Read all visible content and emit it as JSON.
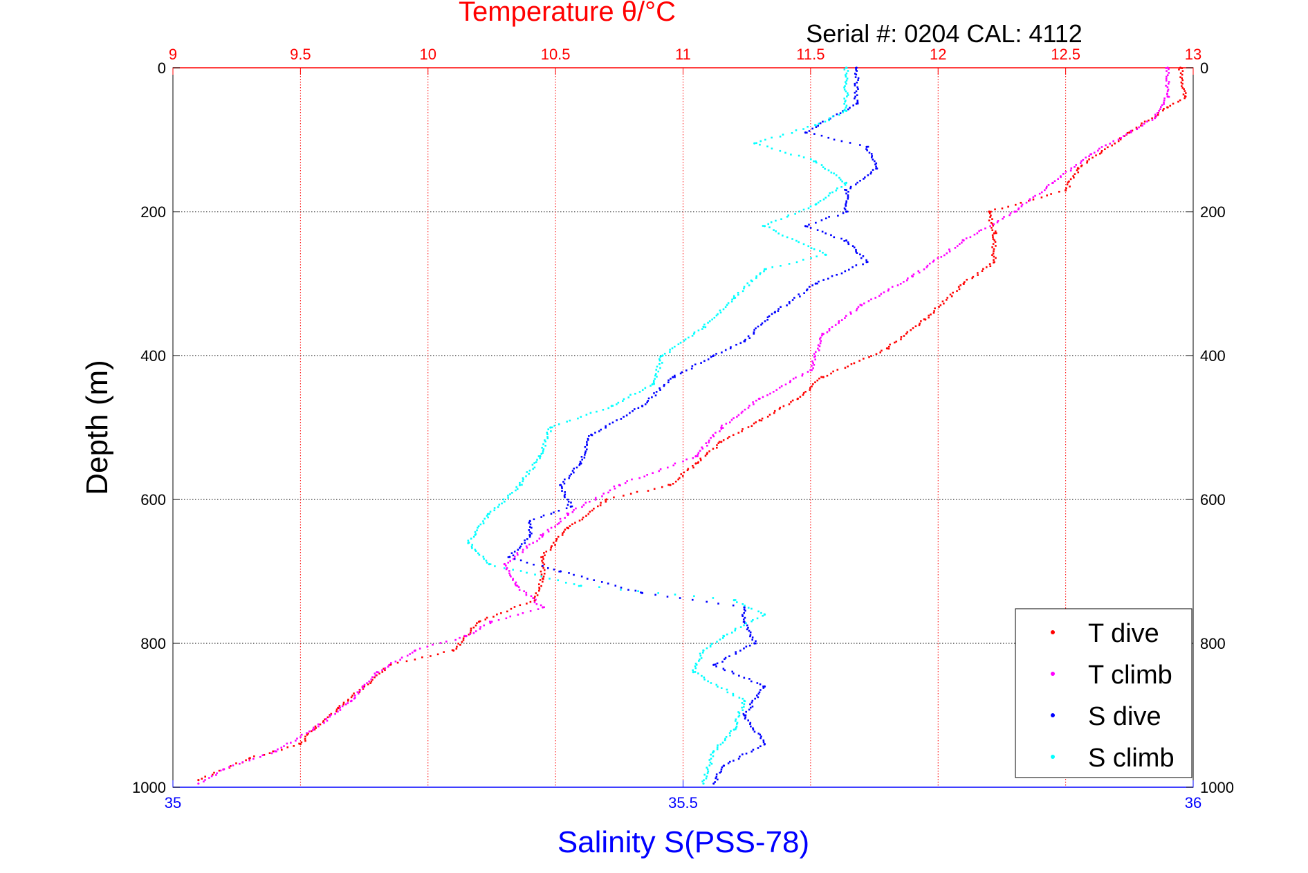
{
  "chart_data": {
    "type": "scatter",
    "title": "Temperature θ/°C",
    "subtitle": "Serial #: 0204  CAL: 4112",
    "ylabel": "Depth (m)",
    "xlabel": "Salinity S(PSS-78)",
    "y_axis": {
      "lim": [
        0,
        1000
      ],
      "reversed": true,
      "ticks": [
        0,
        200,
        400,
        600,
        800,
        1000
      ],
      "tick_labels": [
        "0",
        "200",
        "400",
        "600",
        "800",
        "1000"
      ]
    },
    "x_top": {
      "lim": [
        9,
        13
      ],
      "ticks": [
        9,
        9.5,
        10,
        10.5,
        11,
        11.5,
        12,
        12.5,
        13
      ],
      "tick_labels": [
        "9",
        "9.5",
        "10",
        "10.5",
        "11",
        "11.5",
        "12",
        "12.5",
        "13"
      ]
    },
    "x_bottom": {
      "lim": [
        35,
        36
      ],
      "ticks": [
        35,
        35.5,
        36
      ],
      "tick_labels": [
        "35",
        "35.5",
        "36"
      ]
    },
    "grid": true,
    "legend_position": "bottom-right",
    "colors": {
      "temperature_axis": "#ff0000",
      "salinity_axis": "#0000ff",
      "grid": "#000000"
    },
    "series": [
      {
        "name": "T dive",
        "axis": "x_top",
        "color": "#ff0000",
        "points": [
          [
            12.95,
            0
          ],
          [
            12.97,
            40
          ],
          [
            12.9,
            55
          ],
          [
            12.75,
            90
          ],
          [
            12.55,
            140
          ],
          [
            12.5,
            170
          ],
          [
            12.2,
            200
          ],
          [
            12.22,
            230
          ],
          [
            12.22,
            270
          ],
          [
            12.1,
            300
          ],
          [
            11.95,
            350
          ],
          [
            11.8,
            390
          ],
          [
            11.55,
            430
          ],
          [
            11.45,
            460
          ],
          [
            11.3,
            490
          ],
          [
            11.15,
            520
          ],
          [
            11.05,
            550
          ],
          [
            10.95,
            580
          ],
          [
            10.7,
            600
          ],
          [
            10.55,
            640
          ],
          [
            10.45,
            680
          ],
          [
            10.45,
            710
          ],
          [
            10.42,
            740
          ],
          [
            10.2,
            770
          ],
          [
            10.1,
            810
          ],
          [
            9.85,
            830
          ],
          [
            9.75,
            860
          ],
          [
            9.65,
            890
          ],
          [
            9.55,
            920
          ],
          [
            9.5,
            940
          ],
          [
            9.3,
            960
          ],
          [
            9.1,
            990
          ]
        ]
      },
      {
        "name": "T climb",
        "axis": "x_top",
        "color": "#ff00ff",
        "points": [
          [
            12.9,
            0
          ],
          [
            12.9,
            40
          ],
          [
            12.85,
            70
          ],
          [
            12.6,
            120
          ],
          [
            12.45,
            160
          ],
          [
            12.3,
            200
          ],
          [
            12.1,
            240
          ],
          [
            11.9,
            290
          ],
          [
            11.7,
            330
          ],
          [
            11.55,
            370
          ],
          [
            11.5,
            420
          ],
          [
            11.3,
            460
          ],
          [
            11.15,
            500
          ],
          [
            11.05,
            540
          ],
          [
            10.75,
            580
          ],
          [
            10.55,
            620
          ],
          [
            10.45,
            650
          ],
          [
            10.3,
            690
          ],
          [
            10.35,
            720
          ],
          [
            10.45,
            750
          ],
          [
            10.25,
            770
          ],
          [
            10.15,
            790
          ],
          [
            9.95,
            810
          ],
          [
            9.8,
            840
          ],
          [
            9.7,
            880
          ],
          [
            9.55,
            920
          ],
          [
            9.4,
            950
          ],
          [
            9.2,
            975
          ],
          [
            9.1,
            995
          ]
        ]
      },
      {
        "name": "S dive",
        "axis": "x_bottom",
        "color": "#0000ff",
        "points": [
          [
            35.67,
            0
          ],
          [
            35.67,
            50
          ],
          [
            35.62,
            90
          ],
          [
            35.68,
            110
          ],
          [
            35.69,
            140
          ],
          [
            35.66,
            170
          ],
          [
            35.66,
            200
          ],
          [
            35.62,
            220
          ],
          [
            35.66,
            240
          ],
          [
            35.68,
            270
          ],
          [
            35.63,
            300
          ],
          [
            35.59,
            340
          ],
          [
            35.56,
            380
          ],
          [
            35.53,
            400
          ],
          [
            35.49,
            430
          ],
          [
            35.46,
            470
          ],
          [
            35.41,
            510
          ],
          [
            35.4,
            550
          ],
          [
            35.38,
            580
          ],
          [
            35.39,
            610
          ],
          [
            35.35,
            630
          ],
          [
            35.35,
            650
          ],
          [
            35.33,
            680
          ],
          [
            35.38,
            700
          ],
          [
            35.46,
            730
          ],
          [
            35.56,
            750
          ],
          [
            35.56,
            770
          ],
          [
            35.57,
            800
          ],
          [
            35.53,
            830
          ],
          [
            35.58,
            860
          ],
          [
            35.56,
            900
          ],
          [
            35.58,
            940
          ],
          [
            35.54,
            970
          ],
          [
            35.53,
            995
          ]
        ]
      },
      {
        "name": "S climb",
        "axis": "x_bottom",
        "color": "#00ffff",
        "points": [
          [
            35.66,
            0
          ],
          [
            35.66,
            60
          ],
          [
            35.63,
            80
          ],
          [
            35.57,
            105
          ],
          [
            35.63,
            130
          ],
          [
            35.66,
            160
          ],
          [
            35.63,
            190
          ],
          [
            35.58,
            220
          ],
          [
            35.64,
            260
          ],
          [
            35.58,
            280
          ],
          [
            35.55,
            320
          ],
          [
            35.52,
            360
          ],
          [
            35.48,
            400
          ],
          [
            35.47,
            440
          ],
          [
            35.43,
            470
          ],
          [
            35.37,
            500
          ],
          [
            35.36,
            540
          ],
          [
            35.34,
            580
          ],
          [
            35.31,
            620
          ],
          [
            35.29,
            660
          ],
          [
            35.31,
            690
          ],
          [
            35.4,
            720
          ],
          [
            35.55,
            740
          ],
          [
            35.58,
            760
          ],
          [
            35.54,
            790
          ],
          [
            35.52,
            810
          ],
          [
            35.51,
            840
          ],
          [
            35.56,
            880
          ],
          [
            35.55,
            920
          ],
          [
            35.53,
            950
          ],
          [
            35.52,
            995
          ]
        ]
      }
    ]
  }
}
